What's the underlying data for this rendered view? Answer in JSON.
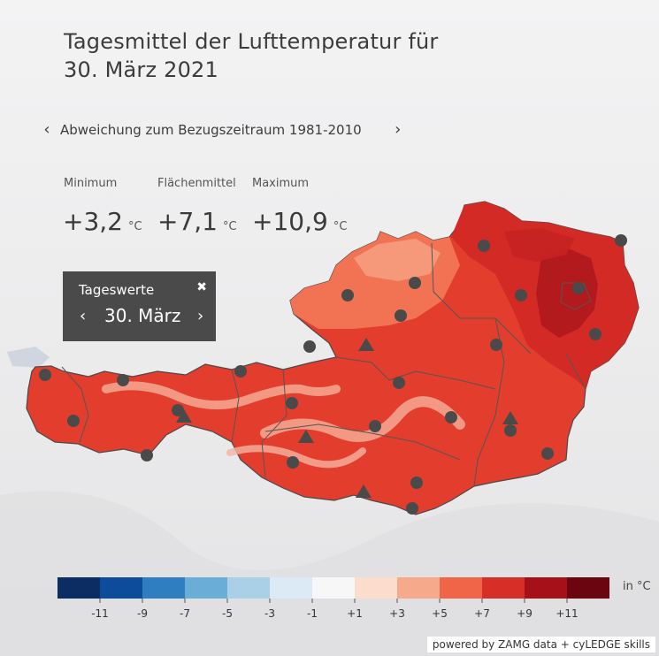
{
  "title": {
    "line1": "Tagesmittel der Lufttemperatur für",
    "line2": "30. März 2021"
  },
  "reference_period": "Abweichung zum Bezugszeitraum 1981-2010",
  "stats": {
    "unit": "°C",
    "minimum": {
      "label": "Minimum",
      "value": "+3,2"
    },
    "mean": {
      "label": "Flächenmittel",
      "value": "+7,1"
    },
    "maximum": {
      "label": "Maximum",
      "value": "+10,9"
    }
  },
  "day_panel": {
    "title": "Tageswerte",
    "date": "30. März"
  },
  "legend": {
    "unit": "in °C",
    "bins": [
      {
        "color": "#0c2c64"
      },
      {
        "color": "#0d4b9b"
      },
      {
        "color": "#2f7ec0"
      },
      {
        "color": "#6aaed8"
      },
      {
        "color": "#a9d0e6"
      },
      {
        "color": "#dceaf5"
      },
      {
        "color": "#f7f7f7"
      },
      {
        "color": "#fcdccd"
      },
      {
        "color": "#f7a98b"
      },
      {
        "color": "#f06548"
      },
      {
        "color": "#d72e27"
      },
      {
        "color": "#a61119"
      },
      {
        "color": "#6b0510"
      }
    ],
    "ticks": [
      "-11",
      "-9",
      "-7",
      "-5",
      "-3",
      "-1",
      "+1",
      "+3",
      "+5",
      "+7",
      "+9",
      "+11"
    ]
  },
  "attribution": "powered by ZAMG data + cyLEDGE skills",
  "map": {
    "fill_colors": {
      "main": "#e23d2d",
      "light": "#f58a6b",
      "dark": "#b91a1d",
      "alpine_light": "#f4a893"
    },
    "station_color": "#4a4a4a"
  }
}
